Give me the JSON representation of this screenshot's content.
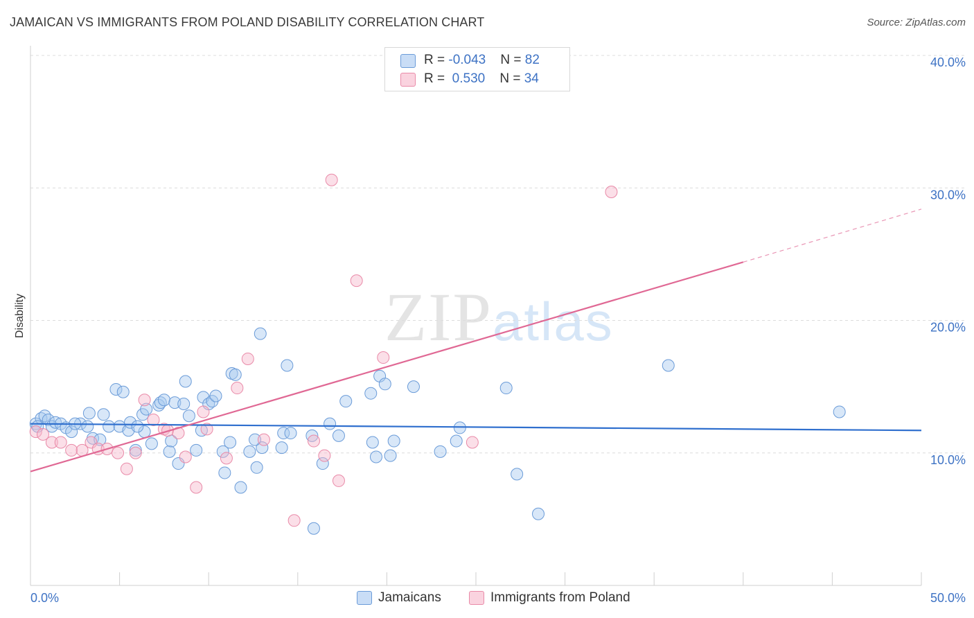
{
  "header": {
    "title": "JAMAICAN VS IMMIGRANTS FROM POLAND DISABILITY CORRELATION CHART",
    "source": "Source: ZipAtlas.com"
  },
  "watermark": {
    "zip": "ZIP",
    "atlas": "atlas"
  },
  "legend": {
    "rows": [
      {
        "r_label": "R = ",
        "r_value": "-0.043",
        "n_label": "N = ",
        "n_value": "82",
        "color": "#a9c9f0"
      },
      {
        "r_label": "R = ",
        "r_value": " 0.530",
        "n_label": "N = ",
        "n_value": "34",
        "color": "#f7b9cb"
      }
    ]
  },
  "bottom_legend": {
    "jamaicans": "Jamaicans",
    "poland": "Immigrants from Poland"
  },
  "colors": {
    "blue_fill": "#a9c9f0",
    "blue_stroke": "#6a9bd8",
    "blue_line": "#2f6fce",
    "pink_fill": "#f7b9cb",
    "pink_stroke": "#e98aa8",
    "pink_line": "#e06894",
    "axis_text": "#3d72c4",
    "grid": "#dcdcdc"
  },
  "chart_data": {
    "type": "scatter",
    "title": "JAMAICAN VS IMMIGRANTS FROM POLAND DISABILITY CORRELATION CHART",
    "xlabel": "",
    "ylabel": "Disability",
    "xlim": [
      0,
      50
    ],
    "ylim": [
      0,
      40
    ],
    "x_tick_labels": [
      "0.0%",
      "50.0%"
    ],
    "y_ticks": [
      10,
      20,
      30,
      40
    ],
    "y_tick_labels": [
      "10.0%",
      "20.0%",
      "30.0%",
      "40.0%"
    ],
    "grid": true,
    "legend_position": "top-center",
    "series": [
      {
        "name": "Jamaicans",
        "color": "#a9c9f0",
        "trend": {
          "x": [
            0,
            50
          ],
          "y": [
            12.2,
            11.7
          ]
        },
        "points": [
          [
            0.3,
            12.2
          ],
          [
            0.6,
            12.6
          ],
          [
            0.8,
            12.8
          ],
          [
            1.0,
            12.5
          ],
          [
            1.2,
            12.0
          ],
          [
            1.4,
            12.3
          ],
          [
            1.7,
            12.2
          ],
          [
            2.0,
            11.9
          ],
          [
            2.3,
            11.6
          ],
          [
            2.8,
            12.2
          ],
          [
            3.3,
            13.0
          ],
          [
            3.5,
            11.1
          ],
          [
            3.9,
            11.0
          ],
          [
            4.1,
            12.9
          ],
          [
            4.4,
            12.0
          ],
          [
            4.8,
            14.8
          ],
          [
            5.0,
            12.0
          ],
          [
            5.2,
            14.6
          ],
          [
            5.5,
            11.7
          ],
          [
            5.6,
            12.3
          ],
          [
            5.9,
            10.2
          ],
          [
            6.3,
            12.9
          ],
          [
            6.4,
            11.6
          ],
          [
            6.5,
            13.3
          ],
          [
            6.8,
            10.7
          ],
          [
            7.2,
            13.6
          ],
          [
            7.3,
            13.8
          ],
          [
            7.5,
            14.0
          ],
          [
            7.8,
            10.1
          ],
          [
            7.9,
            10.9
          ],
          [
            8.1,
            13.8
          ],
          [
            8.3,
            9.2
          ],
          [
            8.6,
            13.7
          ],
          [
            8.7,
            15.4
          ],
          [
            8.9,
            12.8
          ],
          [
            9.3,
            10.2
          ],
          [
            9.6,
            11.7
          ],
          [
            9.7,
            14.2
          ],
          [
            10.0,
            13.7
          ],
          [
            10.2,
            13.9
          ],
          [
            10.4,
            14.3
          ],
          [
            10.8,
            10.1
          ],
          [
            10.9,
            8.5
          ],
          [
            11.2,
            10.8
          ],
          [
            11.3,
            16.0
          ],
          [
            11.5,
            15.9
          ],
          [
            11.8,
            7.4
          ],
          [
            12.3,
            10.1
          ],
          [
            12.7,
            8.9
          ],
          [
            12.9,
            19.0
          ],
          [
            13.0,
            10.4
          ],
          [
            14.1,
            10.4
          ],
          [
            14.2,
            11.5
          ],
          [
            14.4,
            16.6
          ],
          [
            14.6,
            11.5
          ],
          [
            15.8,
            11.3
          ],
          [
            15.9,
            4.3
          ],
          [
            16.4,
            9.2
          ],
          [
            16.8,
            12.2
          ],
          [
            17.3,
            11.3
          ],
          [
            17.7,
            13.9
          ],
          [
            19.1,
            14.5
          ],
          [
            19.2,
            10.8
          ],
          [
            19.4,
            9.7
          ],
          [
            19.6,
            15.8
          ],
          [
            19.9,
            15.2
          ],
          [
            20.2,
            9.8
          ],
          [
            20.4,
            10.9
          ],
          [
            21.5,
            15.0
          ],
          [
            23.0,
            10.1
          ],
          [
            23.9,
            10.9
          ],
          [
            24.1,
            11.9
          ],
          [
            26.7,
            14.9
          ],
          [
            27.3,
            8.4
          ],
          [
            28.5,
            5.4
          ],
          [
            35.8,
            16.6
          ],
          [
            45.4,
            13.1
          ],
          [
            3.2,
            12.0
          ],
          [
            2.5,
            12.2
          ],
          [
            6.0,
            12.0
          ],
          [
            12.6,
            11.0
          ],
          [
            0.4,
            12.0
          ]
        ]
      },
      {
        "name": "Immigrants from Poland",
        "color": "#f7b9cb",
        "trend": {
          "x": [
            0,
            40
          ],
          "y": [
            8.6,
            24.4
          ],
          "dashed_to": {
            "x": 50,
            "y": 28.4
          }
        },
        "points": [
          [
            0.3,
            11.6
          ],
          [
            0.7,
            11.4
          ],
          [
            1.2,
            10.8
          ],
          [
            1.7,
            10.8
          ],
          [
            2.3,
            10.2
          ],
          [
            2.9,
            10.2
          ],
          [
            3.4,
            10.8
          ],
          [
            3.8,
            10.3
          ],
          [
            4.3,
            10.3
          ],
          [
            4.9,
            10.0
          ],
          [
            5.4,
            8.8
          ],
          [
            5.9,
            10.0
          ],
          [
            6.4,
            14.0
          ],
          [
            6.9,
            12.5
          ],
          [
            7.5,
            11.8
          ],
          [
            7.7,
            11.7
          ],
          [
            8.3,
            11.5
          ],
          [
            8.7,
            9.7
          ],
          [
            9.3,
            7.4
          ],
          [
            9.7,
            13.1
          ],
          [
            9.9,
            11.8
          ],
          [
            11.0,
            9.6
          ],
          [
            11.6,
            14.9
          ],
          [
            12.2,
            17.1
          ],
          [
            13.1,
            11.0
          ],
          [
            14.8,
            4.9
          ],
          [
            15.9,
            10.9
          ],
          [
            16.5,
            9.8
          ],
          [
            16.9,
            30.6
          ],
          [
            17.3,
            7.9
          ],
          [
            18.3,
            23.0
          ],
          [
            19.8,
            17.2
          ],
          [
            24.8,
            10.8
          ],
          [
            32.6,
            29.7
          ]
        ]
      }
    ]
  }
}
